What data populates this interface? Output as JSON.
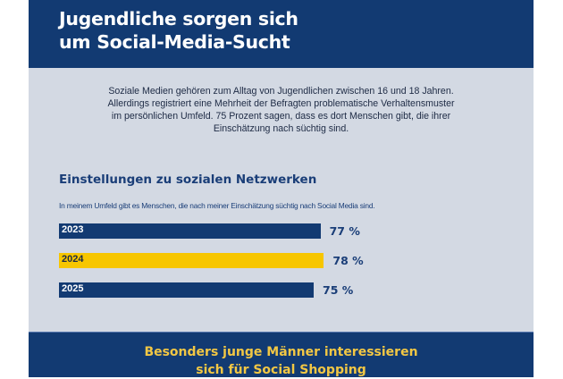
{
  "header": {
    "title_line1": "Jugendliche sorgen sich",
    "title_line2": "um Social-Media-Sucht"
  },
  "intro": {
    "lines": [
      "Soziale Medien gehören zum Alltag von Jugendlichen zwischen 16 und 18 Jahren.",
      "Allerdings registriert eine Mehrheit der Befragten problematische Verhaltensmuster",
      "im persönlichen Umfeld. 75 Prozent sagen, dass es dort Menschen gibt, die ihrer",
      "Einschätzung nach süchtig sind."
    ]
  },
  "chart_data": {
    "type": "bar",
    "orientation": "horizontal",
    "title": "Einstellungen zu sozialen Netzwerken",
    "subtitle": "In meinem Umfeld gibt es Menschen, die nach meiner Einschätzung süchtig nach Social Media sind.",
    "categories": [
      "2023",
      "2024",
      "2025"
    ],
    "values": [
      77,
      78,
      75
    ],
    "value_labels": [
      "77 %",
      "78 %",
      "75 %"
    ],
    "colors": [
      "#123a72",
      "#f7c600",
      "#123a72"
    ],
    "label_colors": [
      "#ffffff",
      "#1d2a44",
      "#ffffff"
    ]
  },
  "footer": {
    "title_line1": "Besonders junge Männer interessieren",
    "title_line2": "sich für Social Shopping"
  }
}
